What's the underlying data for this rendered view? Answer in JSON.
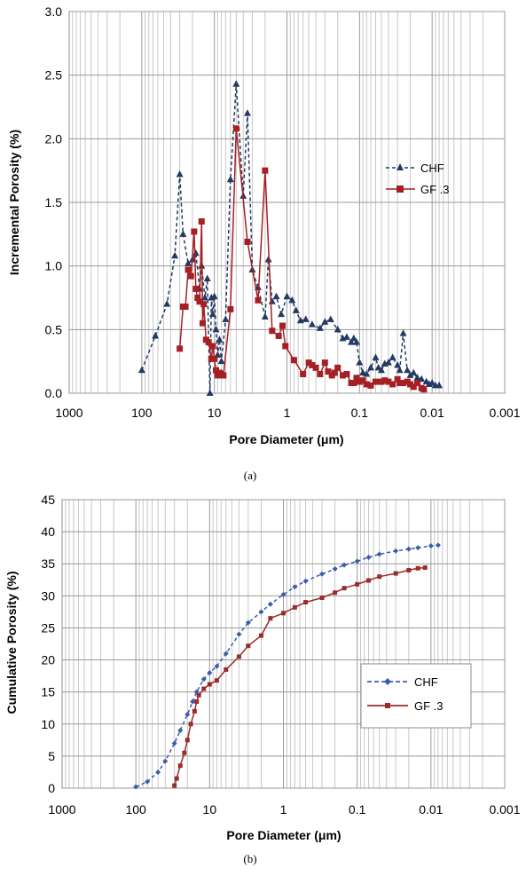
{
  "chart_data": [
    {
      "type": "line",
      "panel_label": "(a)",
      "xlabel": "Pore Diameter (μm)",
      "ylabel": "Incremental Porosity (%)",
      "x_scale": "log",
      "x_reversed": true,
      "xlim": [
        1000,
        0.001
      ],
      "ylim": [
        0,
        3.0
      ],
      "x_ticks": [
        "1000",
        "100",
        "10",
        "1",
        "0.1",
        "0.01",
        "0.001"
      ],
      "y_ticks": [
        "0.0",
        "0.5",
        "1.0",
        "1.5",
        "2.0",
        "2.5",
        "3.0"
      ],
      "grid": true,
      "legend_position": "right",
      "series": [
        {
          "name": "CHF",
          "color": "#243a63",
          "line_style": "dashed",
          "marker": "triangle",
          "x": [
            100,
            65,
            45,
            35,
            30,
            27,
            23,
            20,
            18,
            16,
            15,
            13.5,
            12.5,
            11.5,
            11,
            10.5,
            10,
            9.5,
            9,
            8.5,
            8,
            7,
            6,
            5,
            4,
            3.5,
            3,
            2.5,
            2,
            1.8,
            1.6,
            1.4,
            1.2,
            1.0,
            0.85,
            0.75,
            0.65,
            0.55,
            0.45,
            0.35,
            0.3,
            0.25,
            0.2,
            0.17,
            0.15,
            0.13,
            0.12,
            0.11,
            0.1,
            0.09,
            0.08,
            0.07,
            0.06,
            0.055,
            0.05,
            0.045,
            0.04,
            0.035,
            0.03,
            0.028,
            0.025,
            0.022,
            0.02,
            0.018,
            0.016,
            0.014,
            0.012,
            0.011,
            0.01,
            0.009,
            0.008
          ],
          "y": [
            0.18,
            0.45,
            0.7,
            1.08,
            1.72,
            1.25,
            1.02,
            1.05,
            1.1,
            0.82,
            1.0,
            0.75,
            0.9,
            0.0,
            0.75,
            0.62,
            0.76,
            0.5,
            0.3,
            0.42,
            0.25,
            0.58,
            1.68,
            2.43,
            1.55,
            2.2,
            0.97,
            0.83,
            0.6,
            1.05,
            0.72,
            0.76,
            0.62,
            0.76,
            0.73,
            0.65,
            0.57,
            0.58,
            0.54,
            0.51,
            0.56,
            0.58,
            0.5,
            0.43,
            0.44,
            0.4,
            0.43,
            0.4,
            0.24,
            0.16,
            0.15,
            0.2,
            0.28,
            0.2,
            0.18,
            0.23,
            0.24,
            0.28,
            0.22,
            0.18,
            0.47,
            0.18,
            0.14,
            0.16,
            0.12,
            0.11,
            0.09,
            0.07,
            0.08,
            0.06,
            0.06
          ]
        },
        {
          "name": "GF .3",
          "color": "#a42024",
          "line_style": "solid",
          "marker": "square",
          "x": [
            30,
            27,
            25,
            23,
            21,
            19,
            18,
            17,
            16,
            15,
            14.5,
            14,
            13,
            12,
            11,
            10.5,
            10,
            9.5,
            9,
            8.5,
            8,
            7.5,
            6,
            5,
            3.5,
            2.5,
            2,
            1.6,
            1.3,
            1.15,
            1.05,
            0.8,
            0.6,
            0.5,
            0.45,
            0.4,
            0.35,
            0.3,
            0.27,
            0.24,
            0.22,
            0.2,
            0.17,
            0.15,
            0.13,
            0.12,
            0.11,
            0.1,
            0.09,
            0.08,
            0.07,
            0.06,
            0.05,
            0.045,
            0.04,
            0.035,
            0.03,
            0.028,
            0.025,
            0.022,
            0.02,
            0.018,
            0.016,
            0.014,
            0.013
          ],
          "y": [
            0.35,
            0.68,
            0.68,
            0.97,
            0.92,
            1.27,
            0.82,
            0.75,
            0.72,
            1.35,
            0.55,
            0.7,
            0.42,
            0.4,
            0.27,
            0.37,
            0.27,
            0.18,
            0.14,
            0.16,
            0.15,
            0.14,
            0.66,
            2.08,
            1.19,
            0.73,
            1.75,
            0.49,
            0.45,
            0.53,
            0.37,
            0.26,
            0.15,
            0.24,
            0.22,
            0.2,
            0.15,
            0.24,
            0.17,
            0.14,
            0.16,
            0.2,
            0.14,
            0.15,
            0.08,
            0.08,
            0.12,
            0.09,
            0.1,
            0.07,
            0.06,
            0.09,
            0.09,
            0.1,
            0.09,
            0.07,
            0.11,
            0.08,
            0.08,
            0.09,
            0.07,
            0.05,
            0.08,
            0.04,
            0.03
          ]
        }
      ]
    },
    {
      "type": "line",
      "panel_label": "(b)",
      "xlabel": "Pore Diameter (μm)",
      "ylabel": "Cumulative Porosity (%)",
      "x_scale": "log",
      "x_reversed": true,
      "xlim": [
        1000,
        0.001
      ],
      "ylim": [
        0,
        45
      ],
      "x_ticks": [
        "1000",
        "100",
        "10",
        "1",
        "0.1",
        "0.01",
        "0.001"
      ],
      "y_ticks": [
        "0",
        "5",
        "10",
        "15",
        "20",
        "25",
        "30",
        "35",
        "40",
        "45"
      ],
      "grid": true,
      "legend_position": "right",
      "series": [
        {
          "name": "CHF",
          "color": "#3b5dab",
          "line_style": "dashed",
          "marker": "diamond",
          "x": [
            100,
            70,
            50,
            40,
            30,
            25,
            20,
            17,
            15,
            12,
            10,
            8,
            6,
            4,
            3,
            2,
            1.5,
            1,
            0.7,
            0.5,
            0.3,
            0.2,
            0.15,
            0.1,
            0.07,
            0.05,
            0.03,
            0.02,
            0.015,
            0.01,
            0.008
          ],
          "y": [
            0.2,
            1.0,
            2.5,
            4.2,
            7.0,
            9.0,
            11.5,
            13.5,
            15.0,
            17.0,
            18.0,
            19.0,
            21.0,
            24.0,
            25.8,
            27.5,
            28.7,
            30.2,
            31.4,
            32.3,
            33.4,
            34.2,
            34.8,
            35.4,
            36.0,
            36.5,
            37.0,
            37.3,
            37.5,
            37.8,
            37.9
          ]
        },
        {
          "name": "GF .3",
          "color": "#9b2c2c",
          "line_style": "solid",
          "marker": "square",
          "x": [
            30,
            28,
            25,
            22,
            20,
            18,
            16,
            15,
            14,
            12,
            10,
            8,
            6,
            4,
            3,
            2,
            1.5,
            1,
            0.7,
            0.5,
            0.3,
            0.2,
            0.15,
            0.1,
            0.07,
            0.05,
            0.03,
            0.02,
            0.015,
            0.012
          ],
          "y": [
            0.4,
            1.5,
            3.5,
            5.5,
            7.5,
            10.0,
            12.0,
            13.5,
            14.5,
            15.5,
            16.2,
            16.8,
            18.5,
            20.5,
            22.2,
            23.8,
            26.5,
            27.3,
            28.2,
            29.0,
            29.7,
            30.5,
            31.2,
            31.8,
            32.4,
            33.0,
            33.5,
            34.0,
            34.3,
            34.4
          ]
        }
      ]
    }
  ]
}
